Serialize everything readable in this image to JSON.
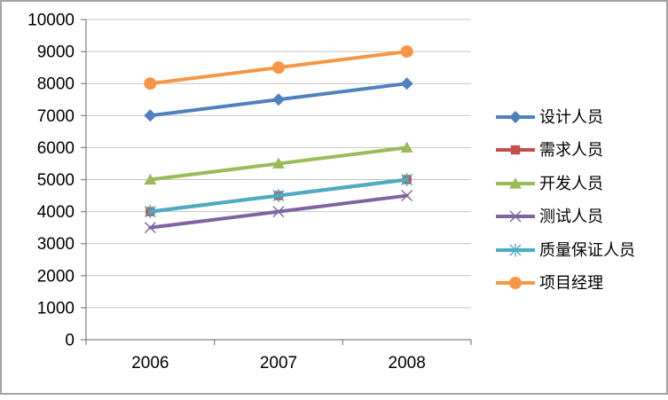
{
  "chart_data": {
    "type": "line",
    "title": "",
    "xlabel": "",
    "ylabel": "",
    "categories": [
      "2006",
      "2007",
      "2008"
    ],
    "series": [
      {
        "name": "设计人员",
        "marker": "diamond",
        "color": "#4F81BD",
        "values": [
          7000,
          7500,
          8000
        ]
      },
      {
        "name": "需求人员",
        "marker": "square",
        "color": "#C0504D",
        "values": [
          4000,
          4500,
          5000
        ]
      },
      {
        "name": "开发人员",
        "marker": "triangle",
        "color": "#9BBB59",
        "values": [
          5000,
          5500,
          6000
        ]
      },
      {
        "name": "测试人员",
        "marker": "x",
        "color": "#8064A2",
        "values": [
          3500,
          4000,
          4500
        ]
      },
      {
        "name": "质量保证人员",
        "marker": "asterisk",
        "color": "#4BACC6",
        "values": [
          4000,
          4500,
          5000
        ]
      },
      {
        "name": "项目经理",
        "marker": "circle",
        "color": "#F79646",
        "values": [
          8000,
          8500,
          9000
        ]
      }
    ],
    "ylim": [
      0,
      10000
    ],
    "ytick_step": 1000,
    "yticks": [
      "0",
      "1000",
      "2000",
      "3000",
      "4000",
      "5000",
      "6000",
      "7000",
      "8000",
      "9000",
      "10000"
    ],
    "grid": true,
    "legend_position": "right"
  },
  "style": {
    "background": "#FFFFFF",
    "frame_border": "#A4A4A4",
    "gridline": "#C3C3C3",
    "axis": "#808080",
    "label_color": "#000000"
  }
}
